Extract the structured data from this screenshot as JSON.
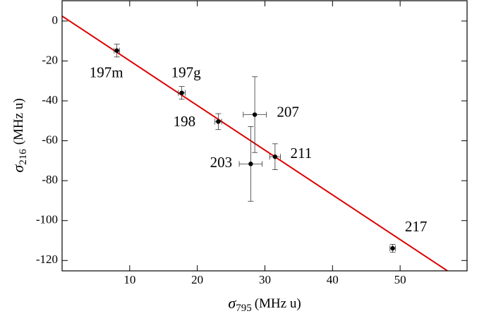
{
  "chart_data": {
    "type": "scatter",
    "xlabel": {
      "symbol": "σ",
      "sub": "795",
      "unit": "(MHz u)"
    },
    "ylabel": {
      "symbol": "σ",
      "sub": "216",
      "unit": "(MHz u)"
    },
    "xlim": [
      0,
      59.9
    ],
    "ylim": [
      -125.2,
      10.2
    ],
    "xticks": [
      10,
      20,
      30,
      40,
      50
    ],
    "yticks": [
      0,
      -20,
      -40,
      -60,
      -80,
      -100,
      -120
    ],
    "series": [
      {
        "labels": [
          "197m",
          "197g",
          "198",
          "203",
          "207",
          "211",
          "217"
        ],
        "color": "#000000",
        "x": [
          8.1,
          17.7,
          23.1,
          27.9,
          28.5,
          31.5,
          48.9
        ],
        "values": [
          -14.8,
          -36,
          -50.4,
          -71.6,
          -46.9,
          -68,
          -113.9
        ],
        "xerr": [
          0.4,
          0.5,
          0.5,
          1.7,
          1.7,
          0.8,
          0.4
        ],
        "yerr": [
          3.2,
          3.2,
          4,
          18.7,
          19,
          6.5,
          2
        ]
      }
    ],
    "fit": {
      "color": "#dd0000",
      "x": [
        0,
        57
      ],
      "values": [
        2.5,
        -125.2
      ]
    }
  }
}
